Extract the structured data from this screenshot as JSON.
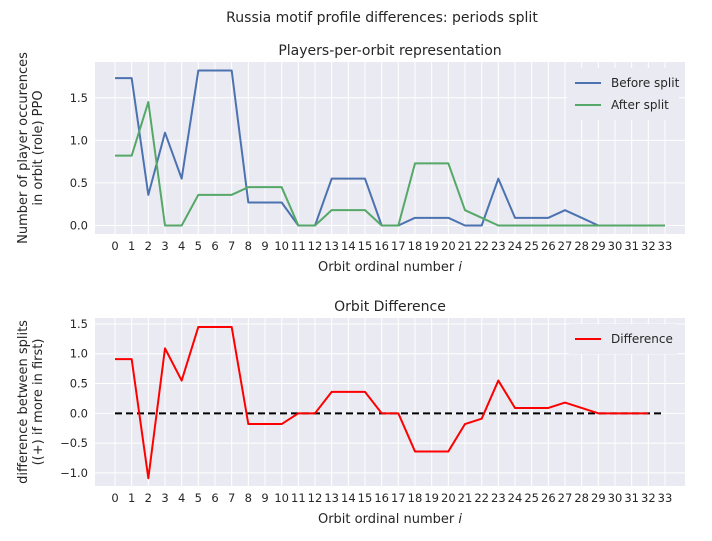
{
  "figure": {
    "suptitle": "Russia motif profile differences: periods split"
  },
  "chart_data": [
    {
      "type": "line",
      "title": "Players-per-orbit representation",
      "xlabel": "Orbit ordinal number",
      "xlabel_var": "i",
      "ylabel": [
        "Number of player occurences",
        "in orbit (role) PPO"
      ],
      "xticks": [
        0,
        1,
        2,
        3,
        4,
        5,
        6,
        7,
        8,
        9,
        10,
        11,
        12,
        13,
        14,
        15,
        16,
        17,
        18,
        19,
        20,
        21,
        22,
        23,
        24,
        25,
        26,
        27,
        28,
        29,
        30,
        31,
        32,
        33
      ],
      "xlim": [
        -1.2,
        34.2
      ],
      "ylim": [
        -0.1,
        1.92
      ],
      "yticks": [
        0.0,
        0.5,
        1.0,
        1.5
      ],
      "ytick_labels": [
        "0.0",
        "0.5",
        "1.0",
        "1.5"
      ],
      "grid": true,
      "legend_position": "top-right",
      "x": [
        0,
        1,
        2,
        3,
        4,
        5,
        6,
        7,
        8,
        9,
        10,
        11,
        12,
        13,
        14,
        15,
        16,
        17,
        18,
        19,
        20,
        21,
        22,
        23,
        24,
        25,
        26,
        27,
        28,
        29,
        30,
        31,
        32,
        33
      ],
      "series": [
        {
          "name": "Before split",
          "color": "#4c72b0",
          "values": [
            1.73,
            1.73,
            0.36,
            1.09,
            0.55,
            1.82,
            1.82,
            1.82,
            0.27,
            0.27,
            0.27,
            0.0,
            0.0,
            0.55,
            0.55,
            0.55,
            0.0,
            0.0,
            0.09,
            0.09,
            0.09,
            0.0,
            0.0,
            0.55,
            0.09,
            0.09,
            0.09,
            0.18,
            0.09,
            0.0,
            0.0,
            0.0,
            0.0,
            0.0
          ]
        },
        {
          "name": "After split",
          "color": "#55a868",
          "values": [
            0.82,
            0.82,
            1.45,
            0.0,
            0.0,
            0.36,
            0.36,
            0.36,
            0.45,
            0.45,
            0.45,
            0.0,
            0.0,
            0.18,
            0.18,
            0.18,
            0.0,
            0.0,
            0.73,
            0.73,
            0.73,
            0.18,
            0.09,
            0.0,
            0.0,
            0.0,
            0.0,
            0.0,
            0.0,
            0.0,
            0.0,
            0.0,
            0.0,
            0.0
          ]
        }
      ]
    },
    {
      "type": "line",
      "title": "Orbit Difference",
      "xlabel": "Orbit ordinal number",
      "xlabel_var": "i",
      "ylabel": [
        "difference between splits",
        "((+) if more in first)"
      ],
      "xticks": [
        0,
        1,
        2,
        3,
        4,
        5,
        6,
        7,
        8,
        9,
        10,
        11,
        12,
        13,
        14,
        15,
        16,
        17,
        18,
        19,
        20,
        21,
        22,
        23,
        24,
        25,
        26,
        27,
        28,
        29,
        30,
        31,
        32,
        33
      ],
      "xlim": [
        -1.2,
        34.2
      ],
      "ylim": [
        -1.22,
        1.6
      ],
      "yticks": [
        -1.0,
        -0.5,
        0.0,
        0.5,
        1.0,
        1.5
      ],
      "ytick_labels": [
        "−1.0",
        "−0.5",
        "0.0",
        "0.5",
        "1.0",
        "1.5"
      ],
      "grid": true,
      "legend_position": "top-right",
      "x": [
        0,
        1,
        2,
        3,
        4,
        5,
        6,
        7,
        8,
        9,
        10,
        11,
        12,
        13,
        14,
        15,
        16,
        17,
        18,
        19,
        20,
        21,
        22,
        23,
        24,
        25,
        26,
        27,
        28,
        29,
        30,
        31,
        32
      ],
      "series": [
        {
          "name": "Difference",
          "color": "#ff0000",
          "values": [
            0.91,
            0.91,
            -1.09,
            1.09,
            0.55,
            1.45,
            1.45,
            1.45,
            -0.18,
            -0.18,
            -0.18,
            0.0,
            0.0,
            0.36,
            0.36,
            0.36,
            0.0,
            0.0,
            -0.64,
            -0.64,
            -0.64,
            -0.18,
            -0.09,
            0.55,
            0.09,
            0.09,
            0.09,
            0.18,
            0.09,
            0.0,
            0.0,
            0.0,
            0.0
          ]
        }
      ],
      "reference_line": {
        "y": 0.0,
        "x_range": [
          0,
          33
        ],
        "color": "#000000",
        "style": "dashed"
      }
    }
  ]
}
